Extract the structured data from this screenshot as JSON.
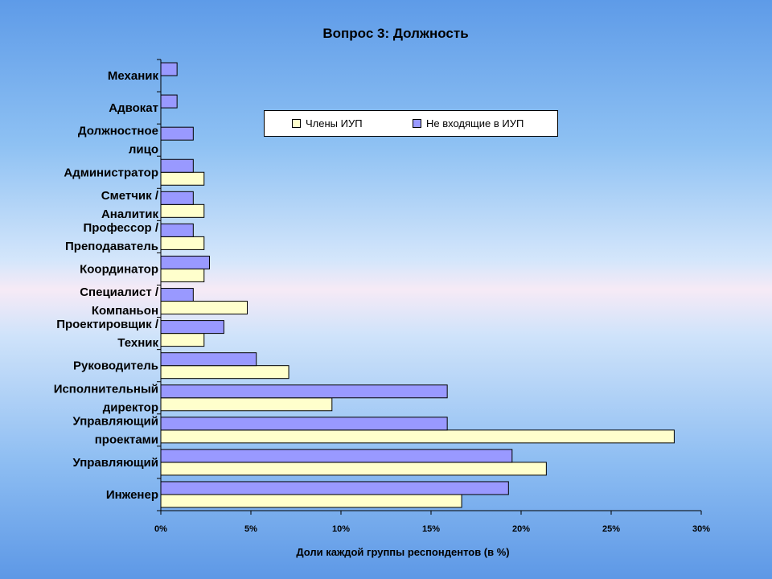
{
  "chart_data": {
    "type": "bar",
    "orientation": "horizontal",
    "title": "Вопрос 3: Должность",
    "xlabel": "Доли каждой группы респондентов  (в %)",
    "ylabel": "",
    "xlim": [
      0,
      30
    ],
    "x_ticks": [
      "0%",
      "5%",
      "10%",
      "15%",
      "20%",
      "25%",
      "30%"
    ],
    "legend_position": "top-right",
    "categories": [
      "Инженер",
      "Управляющий",
      "Управляющий проектами",
      "Исполнительный директор",
      "Руководитель",
      "Проектировщик / Техник",
      "Специалист / Компаньон",
      "Координатор",
      "Профессор / Преподаватель",
      "Сметчик / Аналитик",
      "Администратор",
      "Должностное лицо",
      "Адвокат",
      "Механик"
    ],
    "category_lines": [
      [
        "Инженер"
      ],
      [
        "Управляющий"
      ],
      [
        "Управляющий",
        "проектами"
      ],
      [
        "Исполнительный",
        "директор"
      ],
      [
        "Руководитель"
      ],
      [
        "Проектировщик /",
        "Техник"
      ],
      [
        "Специалист /",
        "Компаньон"
      ],
      [
        "Координатор"
      ],
      [
        "Профессор /",
        "Преподаватель"
      ],
      [
        "Сметчик /",
        "Аналитик"
      ],
      [
        "Администратор"
      ],
      [
        "Должностное",
        "лицо"
      ],
      [
        "Адвокат"
      ],
      [
        "Механик"
      ]
    ],
    "series": [
      {
        "name": "Члены ИУП",
        "color": "#ffffcc",
        "values": [
          16.7,
          21.4,
          28.5,
          9.5,
          7.1,
          2.4,
          4.8,
          2.4,
          2.4,
          2.4,
          2.4,
          0,
          0,
          0
        ]
      },
      {
        "name": "Не входящие в ИУП",
        "color": "#9999ff",
        "values": [
          19.3,
          19.5,
          15.9,
          15.9,
          5.3,
          3.5,
          1.8,
          2.7,
          1.8,
          1.8,
          1.8,
          1.8,
          0.9,
          0.9
        ]
      }
    ]
  }
}
